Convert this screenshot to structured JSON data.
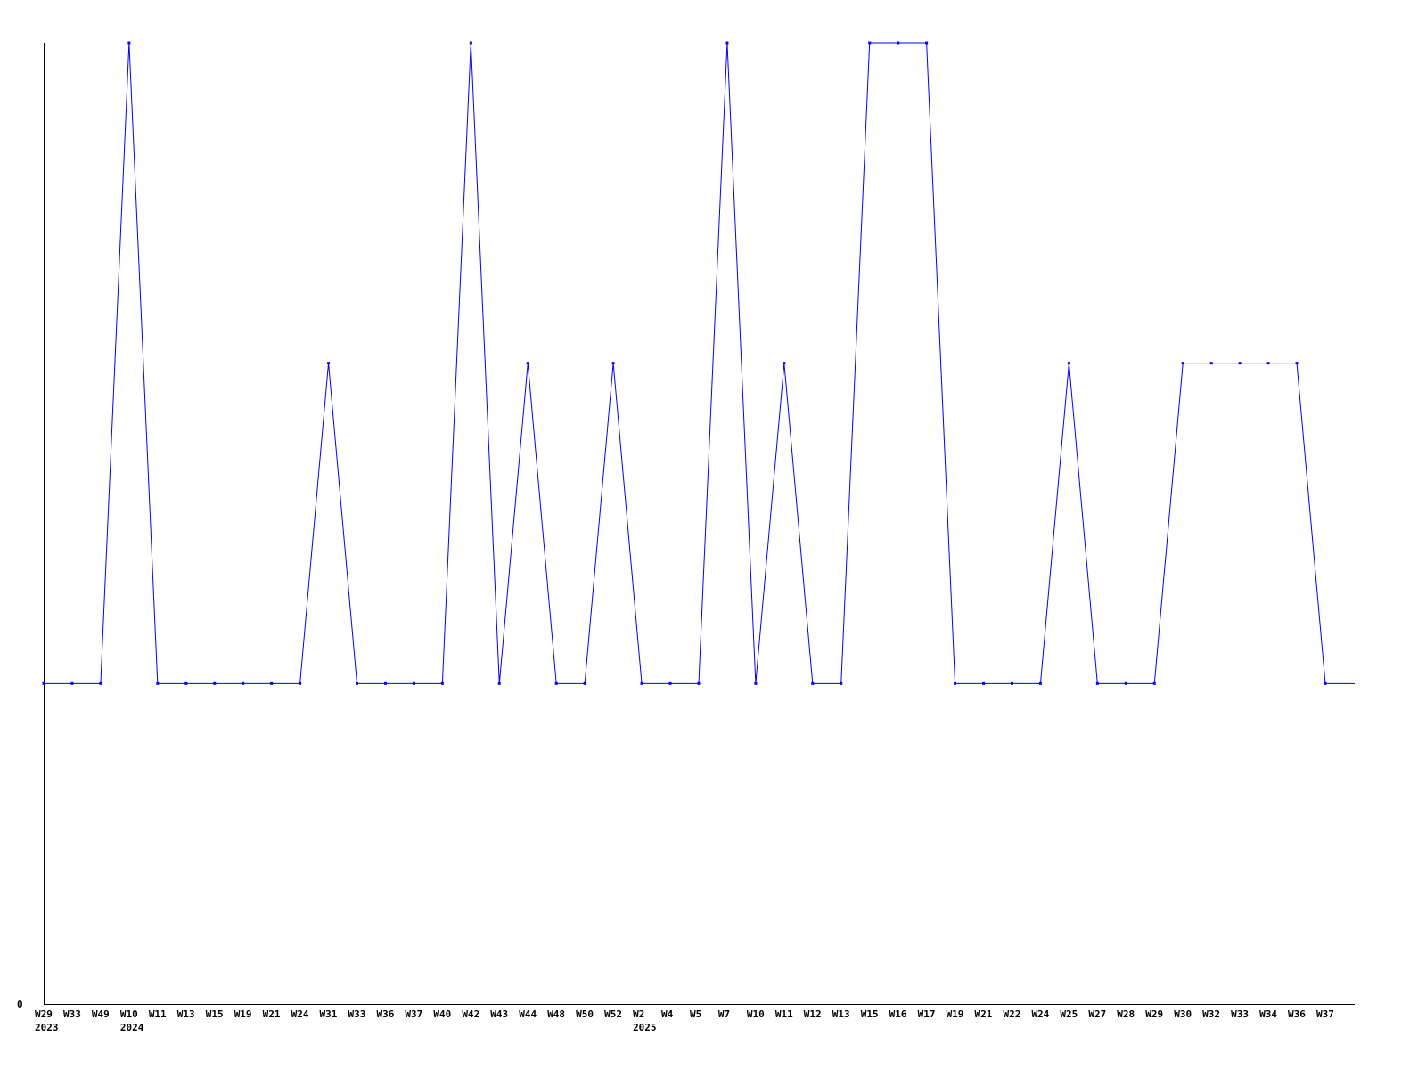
{
  "chart_data": {
    "type": "line",
    "title": "",
    "xlabel": "",
    "ylabel": "",
    "ylim": [
      0,
      3
    ],
    "y_tick_labels": [
      "0"
    ],
    "grid": false,
    "legend": "none",
    "line_color": "#0000ff",
    "categories": [
      "W29",
      "W33",
      "W49",
      "W10",
      "W11",
      "W13",
      "W15",
      "W19",
      "W21",
      "W24",
      "W31",
      "W33",
      "W36",
      "W37",
      "W40",
      "W42",
      "W43",
      "W44",
      "W48",
      "W50",
      "W52",
      "W2",
      "W4",
      "W5",
      "W7",
      "W10",
      "W11",
      "W12",
      "W13",
      "W15",
      "W16",
      "W17",
      "W19",
      "W21",
      "W22",
      "W24",
      "W25",
      "W27",
      "W28",
      "W29",
      "W30",
      "W32",
      "W33",
      "W34",
      "W36",
      "W37"
    ],
    "year_labels": [
      {
        "index": 0,
        "label": "2023"
      },
      {
        "index": 3,
        "label": "2024"
      },
      {
        "index": 21,
        "label": "2025"
      }
    ],
    "values": [
      1,
      1,
      1,
      3,
      1,
      1,
      1,
      1,
      1,
      1,
      2,
      1,
      1,
      1,
      1,
      3,
      1,
      2,
      1,
      1,
      2,
      1,
      1,
      1,
      3,
      1,
      2,
      1,
      1,
      3,
      3,
      3,
      1,
      1,
      1,
      1,
      2,
      1,
      1,
      1,
      2,
      2,
      2,
      2,
      2,
      1
    ],
    "trailing_value": 1
  }
}
